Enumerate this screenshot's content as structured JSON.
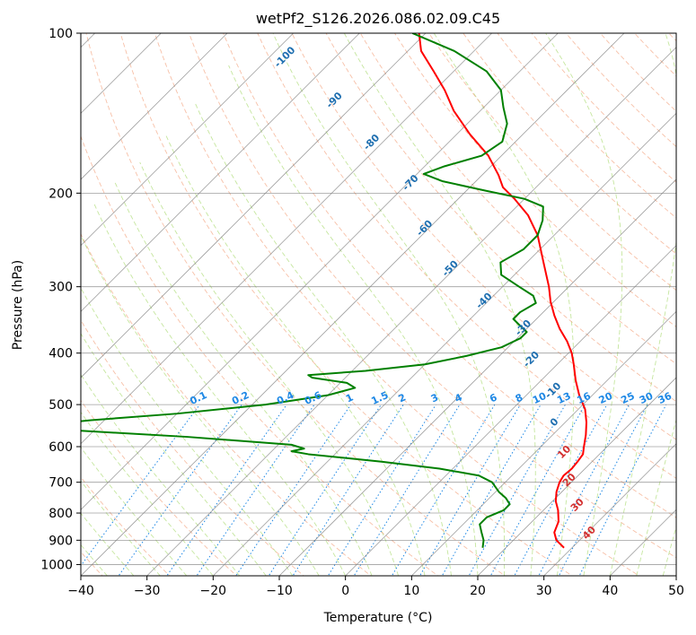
{
  "chart_data": {
    "type": "line",
    "title": "wetPf2_S126.2026.086.02.09.C45",
    "xlabel": "Temperature (°C)",
    "ylabel": "Pressure (hPa)",
    "xlim": [
      -40,
      50
    ],
    "ylim": [
      1050,
      100
    ],
    "y_scale": "log",
    "skew": true,
    "grid": true,
    "x_ticks": [
      -40,
      -30,
      -20,
      -10,
      0,
      10,
      20,
      30,
      40,
      50
    ],
    "x_tick_labels": [
      "−40",
      "−30",
      "−20",
      "−10",
      "0",
      "10",
      "20",
      "30",
      "40",
      "50"
    ],
    "y_ticks": [
      100,
      200,
      300,
      400,
      500,
      600,
      700,
      800,
      900,
      1000
    ],
    "y_tick_labels": [
      "100",
      "200",
      "300",
      "400",
      "500",
      "600",
      "700",
      "800",
      "900",
      "1000"
    ],
    "colors": {
      "temperature": "#ff0000",
      "dewpoint": "#008000",
      "mixing_ratio": "#1e88e5",
      "dry_adiabat_label": "#1f6fb0",
      "moist_adiabat_label": "#d32f2f",
      "dry_adiabat_line": "#f4a582",
      "moist_adiabat_line": "#a6d96a",
      "isotherm": "#808080"
    },
    "series": [
      {
        "key": "temperature",
        "points": [
          {
            "p": 930,
            "t": 28.8
          },
          {
            "p": 900,
            "t": 26.5
          },
          {
            "p": 870,
            "t": 25.0
          },
          {
            "p": 830,
            "t": 24.0
          },
          {
            "p": 790,
            "t": 22.2
          },
          {
            "p": 760,
            "t": 20.5
          },
          {
            "p": 730,
            "t": 19.2
          },
          {
            "p": 700,
            "t": 18.2
          },
          {
            "p": 680,
            "t": 17.8
          },
          {
            "p": 660,
            "t": 18.0
          },
          {
            "p": 640,
            "t": 17.8
          },
          {
            "p": 620,
            "t": 17.5
          },
          {
            "p": 600,
            "t": 16.5
          },
          {
            "p": 570,
            "t": 15.0
          },
          {
            "p": 540,
            "t": 13.2
          },
          {
            "p": 510,
            "t": 11.0
          },
          {
            "p": 480,
            "t": 8.0
          },
          {
            "p": 450,
            "t": 5.2
          },
          {
            "p": 420,
            "t": 2.5
          },
          {
            "p": 400,
            "t": 0.5
          },
          {
            "p": 380,
            "t": -2.0
          },
          {
            "p": 360,
            "t": -5.0
          },
          {
            "p": 340,
            "t": -7.8
          },
          {
            "p": 320,
            "t": -10.5
          },
          {
            "p": 300,
            "t": -13.0
          },
          {
            "p": 270,
            "t": -17.5
          },
          {
            "p": 240,
            "t": -22.5
          },
          {
            "p": 220,
            "t": -27.0
          },
          {
            "p": 205,
            "t": -31.5
          },
          {
            "p": 195,
            "t": -35.0
          },
          {
            "p": 185,
            "t": -37.5
          },
          {
            "p": 170,
            "t": -42.0
          },
          {
            "p": 155,
            "t": -48.0
          },
          {
            "p": 140,
            "t": -54.0
          },
          {
            "p": 128,
            "t": -58.5
          },
          {
            "p": 118,
            "t": -63.0
          },
          {
            "p": 108,
            "t": -68.0
          },
          {
            "p": 100,
            "t": -71.0
          }
        ]
      },
      {
        "key": "dewpoint",
        "points": [
          {
            "p": 930,
            "t": 16.5
          },
          {
            "p": 900,
            "t": 15.5
          },
          {
            "p": 870,
            "t": 14.0
          },
          {
            "p": 840,
            "t": 12.5
          },
          {
            "p": 815,
            "t": 12.5
          },
          {
            "p": 790,
            "t": 14.0
          },
          {
            "p": 770,
            "t": 14.0
          },
          {
            "p": 750,
            "t": 12.5
          },
          {
            "p": 730,
            "t": 10.5
          },
          {
            "p": 700,
            "t": 8.0
          },
          {
            "p": 680,
            "t": 5.0
          },
          {
            "p": 660,
            "t": -2.0
          },
          {
            "p": 640,
            "t": -12.0
          },
          {
            "p": 620,
            "t": -24.0
          },
          {
            "p": 612,
            "t": -27.0
          },
          {
            "p": 605,
            "t": -25.5
          },
          {
            "p": 595,
            "t": -28.0
          },
          {
            "p": 575,
            "t": -45.0
          },
          {
            "p": 560,
            "t": -62.0
          },
          {
            "p": 552,
            "t": -70.0
          },
          {
            "p": 545,
            "t": -68.0
          },
          {
            "p": 535,
            "t": -62.0
          },
          {
            "p": 520,
            "t": -50.0
          },
          {
            "p": 500,
            "t": -38.0
          },
          {
            "p": 480,
            "t": -30.0
          },
          {
            "p": 465,
            "t": -27.0
          },
          {
            "p": 455,
            "t": -29.0
          },
          {
            "p": 445,
            "t": -35.0
          },
          {
            "p": 440,
            "t": -36.0
          },
          {
            "p": 432,
            "t": -28.0
          },
          {
            "p": 420,
            "t": -20.0
          },
          {
            "p": 405,
            "t": -15.0
          },
          {
            "p": 390,
            "t": -11.0
          },
          {
            "p": 375,
            "t": -9.5
          },
          {
            "p": 365,
            "t": -9.5
          },
          {
            "p": 355,
            "t": -11.5
          },
          {
            "p": 345,
            "t": -13.5
          },
          {
            "p": 335,
            "t": -13.5
          },
          {
            "p": 322,
            "t": -12.5
          },
          {
            "p": 312,
            "t": -14.0
          },
          {
            "p": 300,
            "t": -17.5
          },
          {
            "p": 285,
            "t": -22.0
          },
          {
            "p": 270,
            "t": -24.0
          },
          {
            "p": 255,
            "t": -22.5
          },
          {
            "p": 240,
            "t": -22.5
          },
          {
            "p": 225,
            "t": -24.0
          },
          {
            "p": 212,
            "t": -26.0
          },
          {
            "p": 205,
            "t": -30.0
          },
          {
            "p": 198,
            "t": -37.0
          },
          {
            "p": 190,
            "t": -45.0
          },
          {
            "p": 184,
            "t": -49.0
          },
          {
            "p": 178,
            "t": -47.0
          },
          {
            "p": 170,
            "t": -43.0
          },
          {
            "p": 160,
            "t": -42.0
          },
          {
            "p": 148,
            "t": -44.0
          },
          {
            "p": 138,
            "t": -47.0
          },
          {
            "p": 128,
            "t": -50.0
          },
          {
            "p": 118,
            "t": -55.0
          },
          {
            "p": 108,
            "t": -63.0
          },
          {
            "p": 100,
            "t": -72.0
          }
        ]
      }
    ],
    "mixing_ratio_lines": {
      "values": [
        0.1,
        0.2,
        0.4,
        0.6,
        1,
        1.5,
        2,
        3,
        4,
        6,
        8,
        10,
        13,
        16,
        20,
        25,
        30,
        36
      ],
      "labels": [
        "0.1",
        "0.2",
        "0.4",
        "0.6",
        "1",
        "1.5",
        "2",
        "3",
        "4",
        "6",
        "8",
        "10",
        "13",
        "16",
        "20",
        "25",
        "30",
        "36"
      ]
    },
    "dry_adiabats": {
      "labels": [
        {
          "text": "-100",
          "p": 112,
          "t": -87
        },
        {
          "text": "-90",
          "p": 135,
          "t": -73
        },
        {
          "text": "-80",
          "p": 162,
          "t": -61
        },
        {
          "text": "-70",
          "p": 193,
          "t": -49
        },
        {
          "text": "-60",
          "p": 235,
          "t": -40
        },
        {
          "text": "-50",
          "p": 280,
          "t": -30
        },
        {
          "text": "-40",
          "p": 322,
          "t": -20
        },
        {
          "text": "-30",
          "p": 362,
          "t": -10
        },
        {
          "text": "-20",
          "p": 415,
          "t": -4
        },
        {
          "text": "-10",
          "p": 475,
          "t": 4
        },
        {
          "text": "0",
          "p": 545,
          "t": 9
        }
      ]
    },
    "moist_adiabats": {
      "labels": [
        {
          "text": "10",
          "p": 620,
          "t": 15
        },
        {
          "text": "20",
          "p": 700,
          "t": 20
        },
        {
          "text": "30",
          "p": 780,
          "t": 25
        },
        {
          "text": "40",
          "p": 880,
          "t": 31
        }
      ]
    }
  }
}
